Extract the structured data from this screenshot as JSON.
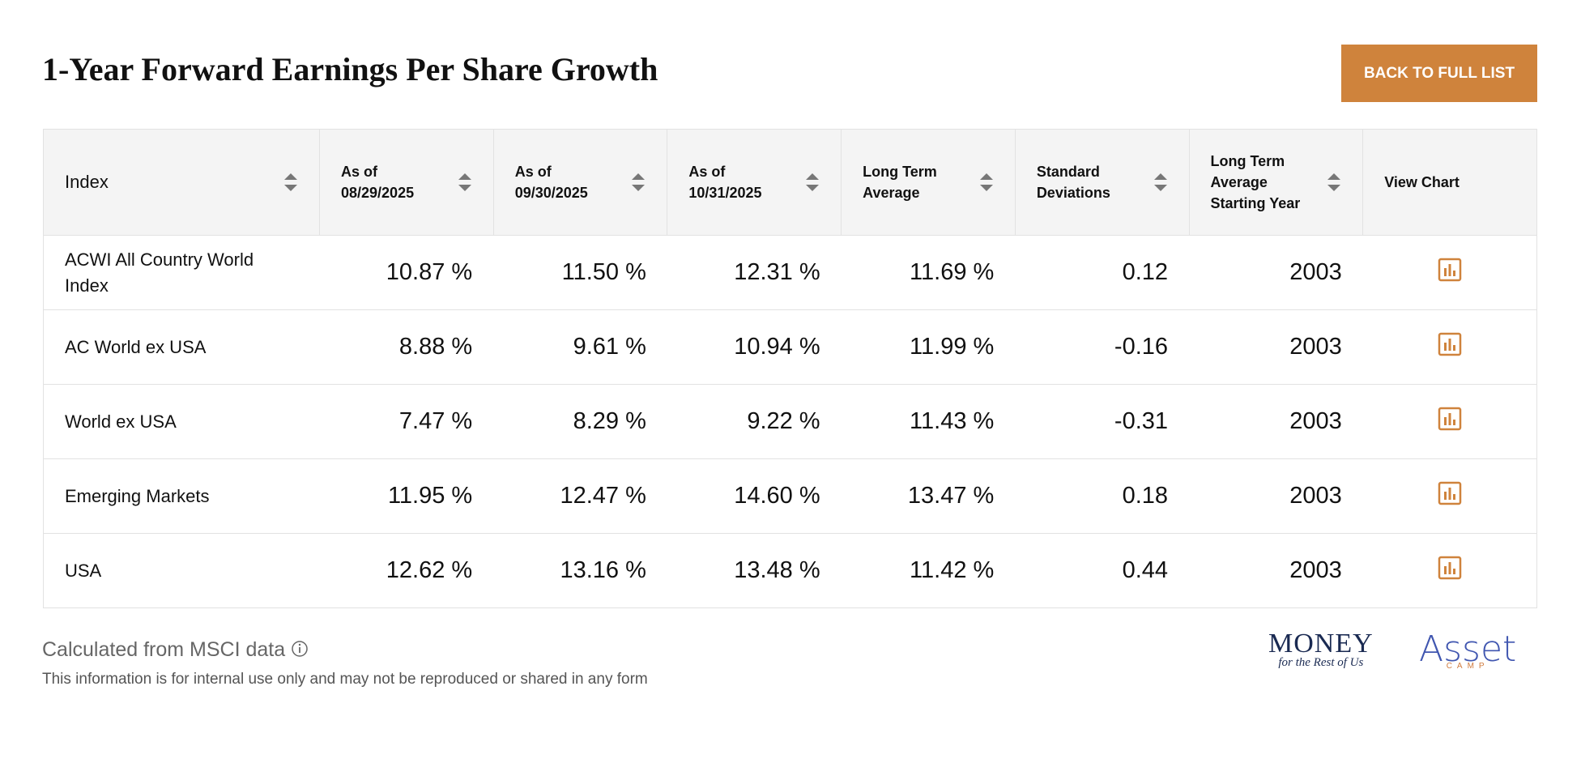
{
  "header": {
    "title": "1-Year Forward Earnings Per Share Growth",
    "button": "BACK TO FULL LIST"
  },
  "table": {
    "columns": [
      "Index",
      "As of 08/29/2025",
      "As of 09/30/2025",
      "As of 10/31/2025",
      "Long Term Average",
      "Standard Deviations",
      "Long Term Average Starting Year",
      "View Chart"
    ],
    "rows": [
      [
        "ACWI All Country World Index",
        "10.87 %",
        "11.50 %",
        "12.31 %",
        "11.69 %",
        "0.12",
        "2003"
      ],
      [
        "AC World ex USA",
        "8.88 %",
        "9.61 %",
        "10.94 %",
        "11.99 %",
        "-0.16",
        "2003"
      ],
      [
        "World ex USA",
        "7.47 %",
        "8.29 %",
        "9.22 %",
        "11.43 %",
        "-0.31",
        "2003"
      ],
      [
        "Emerging Markets",
        "11.95 %",
        "12.47 %",
        "14.60 %",
        "13.47 %",
        "0.18",
        "2003"
      ],
      [
        "USA",
        "12.62 %",
        "13.16 %",
        "13.48 %",
        "11.42 %",
        "0.44",
        "2003"
      ]
    ]
  },
  "footer": {
    "source": "Calculated from MSCI data",
    "note": "This information is for internal use only and may not be reproduced or shared in any form"
  },
  "logos": {
    "money": "MONEY",
    "money_tagline": "for the Rest of Us",
    "asset": "Asset",
    "asset_tagline": "CAMP"
  }
}
